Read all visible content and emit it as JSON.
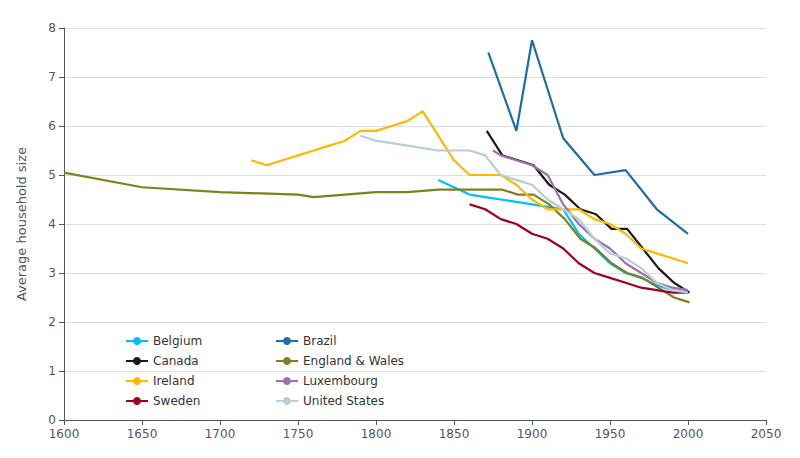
{
  "chart_data": {
    "type": "line",
    "ylabel": "Average household size",
    "xlim": [
      1600,
      2050
    ],
    "ylim": [
      0,
      8
    ],
    "xticks": [
      1600,
      1650,
      1700,
      1750,
      1800,
      1850,
      1900,
      1950,
      2000,
      2050
    ],
    "yticks": [
      0,
      1,
      2,
      3,
      4,
      5,
      6,
      7,
      8
    ],
    "grid": true,
    "legend": "lower left",
    "series": [
      {
        "name": "Belgium",
        "color": "#00BFFF",
        "x": [
          1840,
          1850,
          1860,
          1870,
          1880,
          1890,
          1900,
          1910,
          1920,
          1930,
          1940,
          1950,
          1960,
          1970,
          1980,
          1990,
          2000
        ],
        "values": [
          4.9,
          4.75,
          4.6,
          4.55,
          4.5,
          4.45,
          4.4,
          4.35,
          4.3,
          3.8,
          3.5,
          3.2,
          3.0,
          2.9,
          2.75,
          2.65,
          2.6
        ]
      },
      {
        "name": "Brazil",
        "color": "#1B6CA8",
        "x": [
          1872,
          1890,
          1900,
          1920,
          1940,
          1960,
          1980,
          2000
        ],
        "values": [
          7.5,
          5.9,
          7.75,
          5.75,
          5.0,
          5.1,
          4.3,
          3.8
        ]
      },
      {
        "name": "Canada",
        "color": "#1a1a1a",
        "x": [
          1871,
          1881,
          1891,
          1901,
          1911,
          1921,
          1931,
          1941,
          1951,
          1961,
          1971,
          1981,
          1991,
          2001
        ],
        "values": [
          5.9,
          5.4,
          5.3,
          5.2,
          4.8,
          4.6,
          4.3,
          4.2,
          3.9,
          3.9,
          3.5,
          3.1,
          2.8,
          2.6
        ]
      },
      {
        "name": "England & Wales",
        "color": "#808020",
        "x": [
          1600,
          1650,
          1700,
          1750,
          1760,
          1780,
          1800,
          1820,
          1840,
          1851,
          1861,
          1871,
          1881,
          1891,
          1901,
          1911,
          1921,
          1931,
          1941,
          1951,
          1961,
          1971,
          1981,
          1991,
          2001
        ],
        "values": [
          5.05,
          4.75,
          4.65,
          4.6,
          4.55,
          4.6,
          4.65,
          4.65,
          4.7,
          4.7,
          4.7,
          4.7,
          4.7,
          4.6,
          4.6,
          4.4,
          4.1,
          3.7,
          3.5,
          3.2,
          3.0,
          2.9,
          2.7,
          2.5,
          2.4
        ]
      },
      {
        "name": "Ireland",
        "color": "#FFB800",
        "x": [
          1720,
          1730,
          1740,
          1750,
          1760,
          1770,
          1780,
          1790,
          1800,
          1810,
          1820,
          1830,
          1840,
          1850,
          1860,
          1870,
          1880,
          1890,
          1900,
          1910,
          1920,
          1930,
          1940,
          1950,
          1960,
          1970,
          1980,
          1990,
          2000
        ],
        "values": [
          5.3,
          5.2,
          5.3,
          5.4,
          5.5,
          5.6,
          5.7,
          5.9,
          5.9,
          6.0,
          6.1,
          6.3,
          5.8,
          5.3,
          5.0,
          5.0,
          5.0,
          4.8,
          4.5,
          4.3,
          4.3,
          4.3,
          4.1,
          4.0,
          3.8,
          3.5,
          3.4,
          3.3,
          3.2
        ]
      },
      {
        "name": "Luxembourg",
        "color": "#9B72AA",
        "x": [
          1875,
          1880,
          1890,
          1900,
          1910,
          1920,
          1930,
          1940,
          1950,
          1960,
          1970,
          1980,
          1990,
          2000
        ],
        "values": [
          5.5,
          5.4,
          5.3,
          5.2,
          5.0,
          4.4,
          4.0,
          3.7,
          3.5,
          3.2,
          3.0,
          2.8,
          2.7,
          2.65
        ]
      },
      {
        "name": "Sweden",
        "color": "#A00020",
        "x": [
          1860,
          1870,
          1880,
          1890,
          1900,
          1910,
          1920,
          1930,
          1940,
          1950,
          1960,
          1970,
          1980,
          1990,
          2000
        ],
        "values": [
          4.4,
          4.3,
          4.1,
          4.0,
          3.8,
          3.7,
          3.5,
          3.2,
          3.0,
          2.9,
          2.8,
          2.7,
          2.65,
          2.6,
          2.6
        ]
      },
      {
        "name": "United States",
        "color": "#b8cdd8",
        "x": [
          1790,
          1800,
          1810,
          1820,
          1830,
          1840,
          1850,
          1860,
          1870,
          1880,
          1890,
          1900,
          1910,
          1920,
          1930,
          1940,
          1950,
          1960,
          1970,
          1980,
          1990,
          2000
        ],
        "values": [
          5.8,
          5.7,
          5.65,
          5.6,
          5.55,
          5.5,
          5.5,
          5.5,
          5.4,
          5.0,
          4.9,
          4.8,
          4.5,
          4.3,
          4.1,
          3.7,
          3.4,
          3.3,
          3.1,
          2.8,
          2.65,
          2.6
        ]
      }
    ]
  }
}
